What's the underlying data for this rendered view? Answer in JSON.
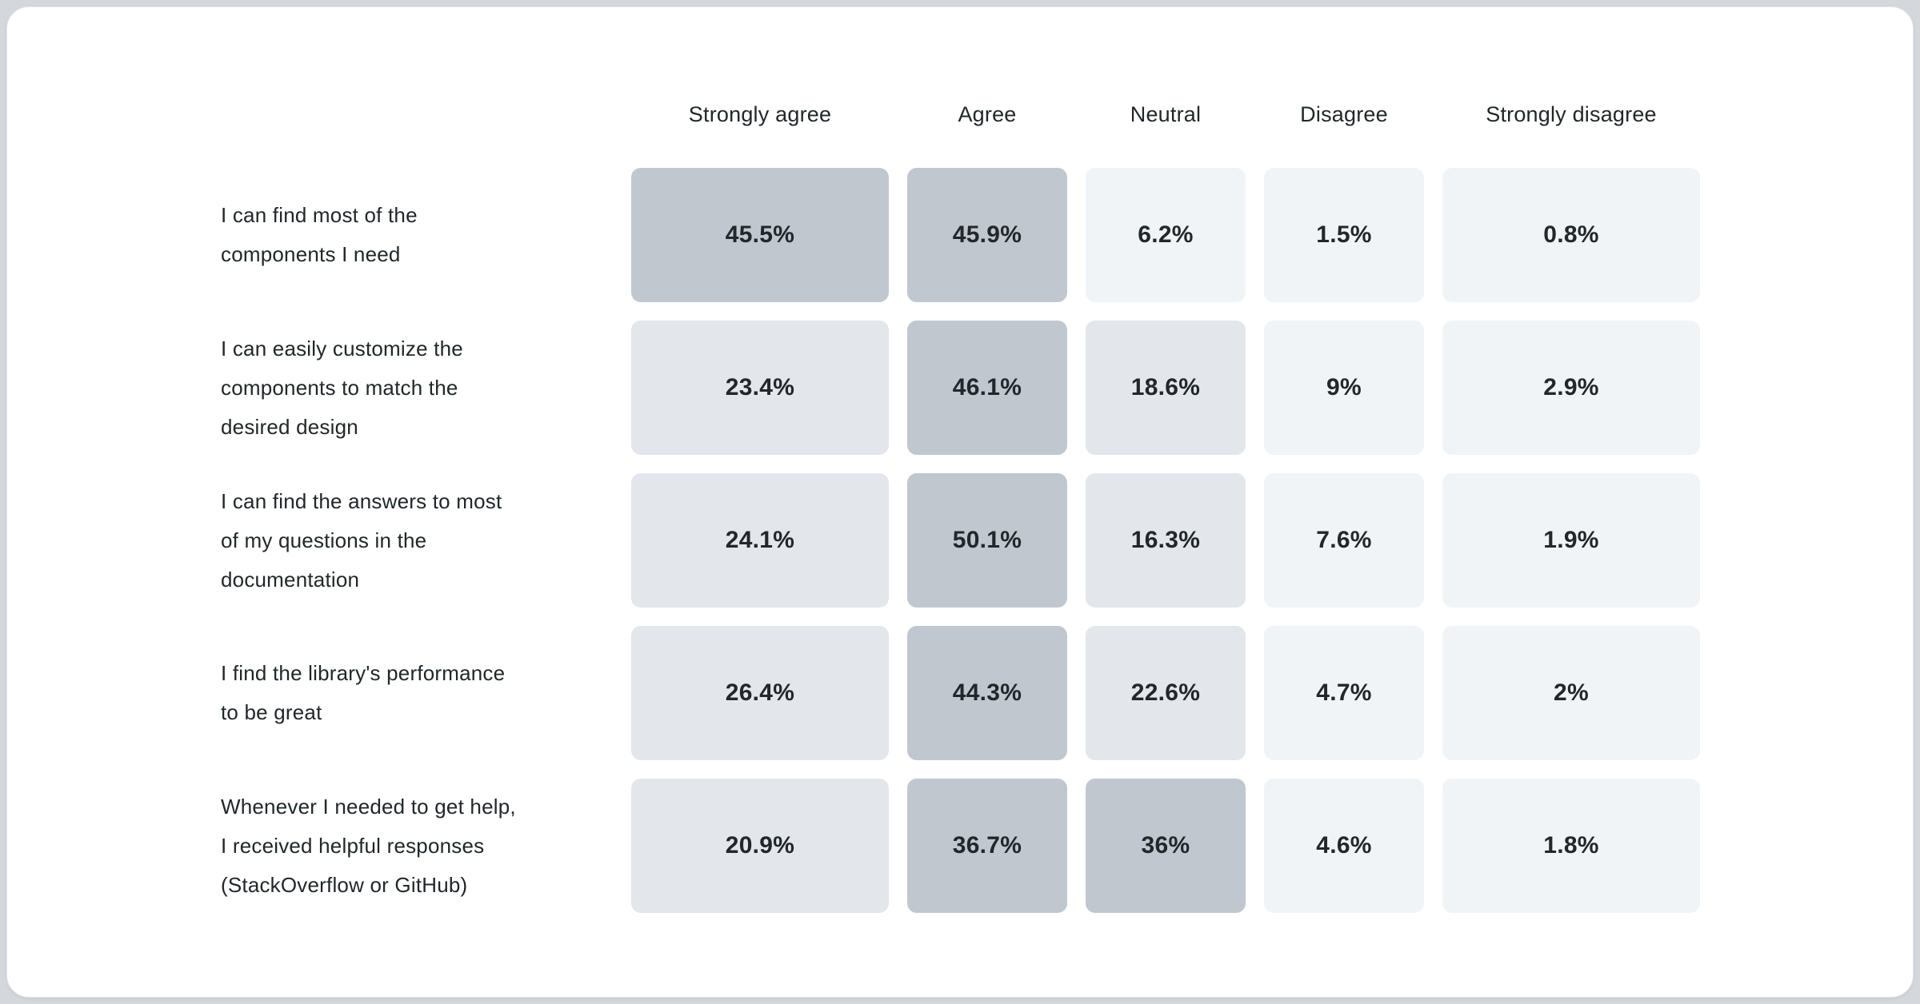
{
  "page": {
    "background": "#d4d8dc",
    "card_background": "#ffffff",
    "text_color": "#21272a"
  },
  "chart_data": {
    "type": "heatmap",
    "title": "",
    "categories": [
      "Strongly agree",
      "Agree",
      "Neutral",
      "Disagree",
      "Strongly disagree"
    ],
    "rows": [
      {
        "label": "I can find most of the components I need",
        "lines": [
          "I can find most of the",
          "components I need"
        ],
        "values": [
          45.5,
          45.9,
          6.2,
          1.5,
          0.8
        ],
        "display": [
          "45.5%",
          "45.9%",
          "6.2%",
          "1.5%",
          "0.8%"
        ]
      },
      {
        "label": "I can easily customize the components to match the desired design",
        "lines": [
          "I can easily customize the",
          "components to match the",
          "desired design"
        ],
        "values": [
          23.4,
          46.1,
          18.6,
          9,
          2.9
        ],
        "display": [
          "23.4%",
          "46.1%",
          "18.6%",
          "9%",
          "2.9%"
        ]
      },
      {
        "label": "I can find the answers to most of my questions in the documentation",
        "lines": [
          "I can find the answers to most",
          "of my questions in the",
          "documentation"
        ],
        "values": [
          24.1,
          50.1,
          16.3,
          7.6,
          1.9
        ],
        "display": [
          "24.1%",
          "50.1%",
          "16.3%",
          "7.6%",
          "1.9%"
        ]
      },
      {
        "label": "I find the library's performance to be great",
        "lines": [
          "I find the library's performance",
          "to be great"
        ],
        "values": [
          26.4,
          44.3,
          22.6,
          4.7,
          2
        ],
        "display": [
          "26.4%",
          "44.3%",
          "22.6%",
          "4.7%",
          "2%"
        ]
      },
      {
        "label": "Whenever I needed to get help, I received helpful responses (StackOverflow or GitHub)",
        "lines": [
          "Whenever I needed to get help,",
          "I received helpful responses",
          "(StackOverflow or GitHub)"
        ],
        "values": [
          20.9,
          36.7,
          36,
          4.6,
          1.8
        ],
        "display": [
          "20.9%",
          "36.7%",
          "36%",
          "4.6%",
          "1.8%"
        ]
      }
    ],
    "palette": {
      "high": "#c1c7ce",
      "medium": "#e3e6ea",
      "low": "#f1f4f7",
      "thresholds": {
        "high": 30,
        "medium": 10
      }
    },
    "legend_position": "none",
    "grid": false
  }
}
